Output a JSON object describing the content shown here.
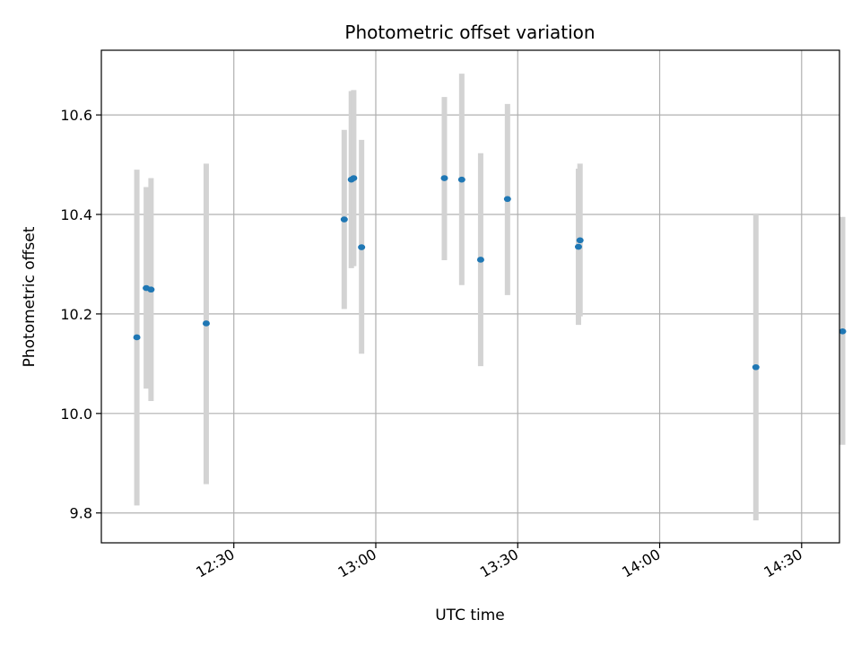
{
  "chart_data": {
    "type": "scatter",
    "title": "Photometric offset variation",
    "xlabel": "UTC time",
    "ylabel": "Photometric offset",
    "x_axis_type": "time",
    "xlim": [
      "12:02",
      "14:38"
    ],
    "ylim": [
      9.74,
      10.73
    ],
    "x_ticks": [
      "12:30",
      "13:00",
      "13:30",
      "14:00",
      "14:30"
    ],
    "y_ticks": [
      "9.8",
      "10.0",
      "10.2",
      "10.4",
      "10.6"
    ],
    "y_tick_values": [
      9.8,
      10.0,
      10.2,
      10.4,
      10.6
    ],
    "grid": true,
    "marker_color": "#1f77b4",
    "errorbar_color": "#d3d3d3",
    "points": [
      {
        "x": "12:09:30",
        "y": 10.153,
        "ymin": 9.815,
        "ymax": 10.49
      },
      {
        "x": "12:11:30",
        "y": 10.252,
        "ymin": 10.05,
        "ymax": 10.455
      },
      {
        "x": "12:12:30",
        "y": 10.249,
        "ymin": 10.025,
        "ymax": 10.473
      },
      {
        "x": "12:24:10",
        "y": 10.181,
        "ymin": 9.858,
        "ymax": 10.502
      },
      {
        "x": "12:53:20",
        "y": 10.39,
        "ymin": 10.21,
        "ymax": 10.57
      },
      {
        "x": "12:54:50",
        "y": 10.47,
        "ymin": 10.292,
        "ymax": 10.648
      },
      {
        "x": "12:55:20",
        "y": 10.473,
        "ymin": 10.296,
        "ymax": 10.65
      },
      {
        "x": "12:57:00",
        "y": 10.334,
        "ymin": 10.12,
        "ymax": 10.55
      },
      {
        "x": "13:14:30",
        "y": 10.473,
        "ymin": 10.308,
        "ymax": 10.636
      },
      {
        "x": "13:18:10",
        "y": 10.47,
        "ymin": 10.258,
        "ymax": 10.683
      },
      {
        "x": "13:22:10",
        "y": 10.309,
        "ymin": 10.095,
        "ymax": 10.523
      },
      {
        "x": "13:27:50",
        "y": 10.431,
        "ymin": 10.238,
        "ymax": 10.622
      },
      {
        "x": "13:42:50",
        "y": 10.335,
        "ymin": 10.178,
        "ymax": 10.492
      },
      {
        "x": "13:43:10",
        "y": 10.348,
        "ymin": 10.195,
        "ymax": 10.502
      },
      {
        "x": "14:20:20",
        "y": 10.093,
        "ymin": 9.785,
        "ymax": 10.402
      },
      {
        "x": "14:38:40",
        "y": 10.165,
        "ymin": 9.937,
        "ymax": 10.395
      }
    ]
  }
}
